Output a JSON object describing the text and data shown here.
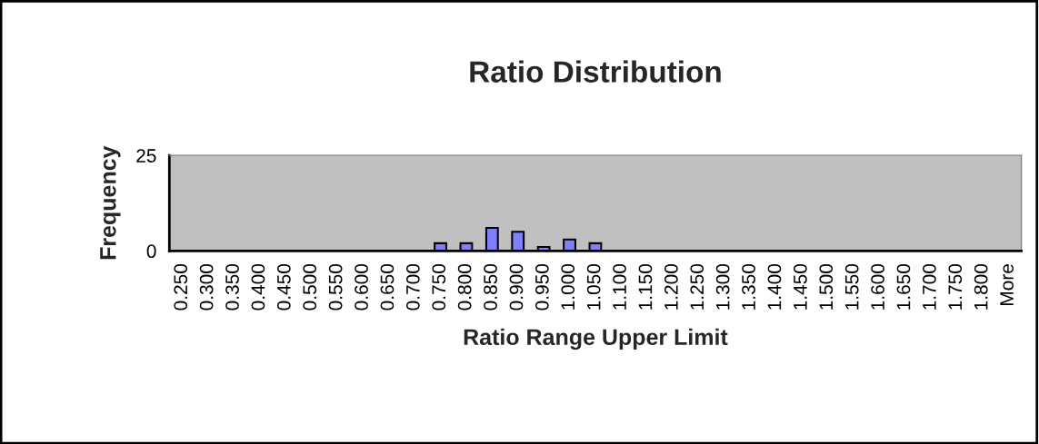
{
  "chart_data": {
    "type": "bar",
    "title": "Ratio Distribution",
    "xlabel": "Ratio Range Upper Limit",
    "ylabel": "Frequency",
    "categories": [
      "0.250",
      "0.300",
      "0.350",
      "0.400",
      "0.450",
      "0.500",
      "0.550",
      "0.600",
      "0.650",
      "0.700",
      "0.750",
      "0.800",
      "0.850",
      "0.900",
      "0.950",
      "1.000",
      "1.050",
      "1.100",
      "1.150",
      "1.200",
      "1.250",
      "1.300",
      "1.350",
      "1.400",
      "1.450",
      "1.500",
      "1.550",
      "1.600",
      "1.650",
      "1.700",
      "1.750",
      "1.800",
      "More"
    ],
    "values": [
      0,
      0,
      0,
      0,
      0,
      0,
      0,
      0,
      0,
      0,
      2,
      2,
      6,
      5,
      1,
      3,
      2,
      0,
      0,
      0,
      0,
      0,
      0,
      0,
      0,
      0,
      0,
      0,
      0,
      0,
      0,
      0,
      0
    ],
    "color": "#8080ff",
    "ylim": [
      0,
      25
    ],
    "yticks": [
      0,
      25
    ],
    "grid": false
  }
}
